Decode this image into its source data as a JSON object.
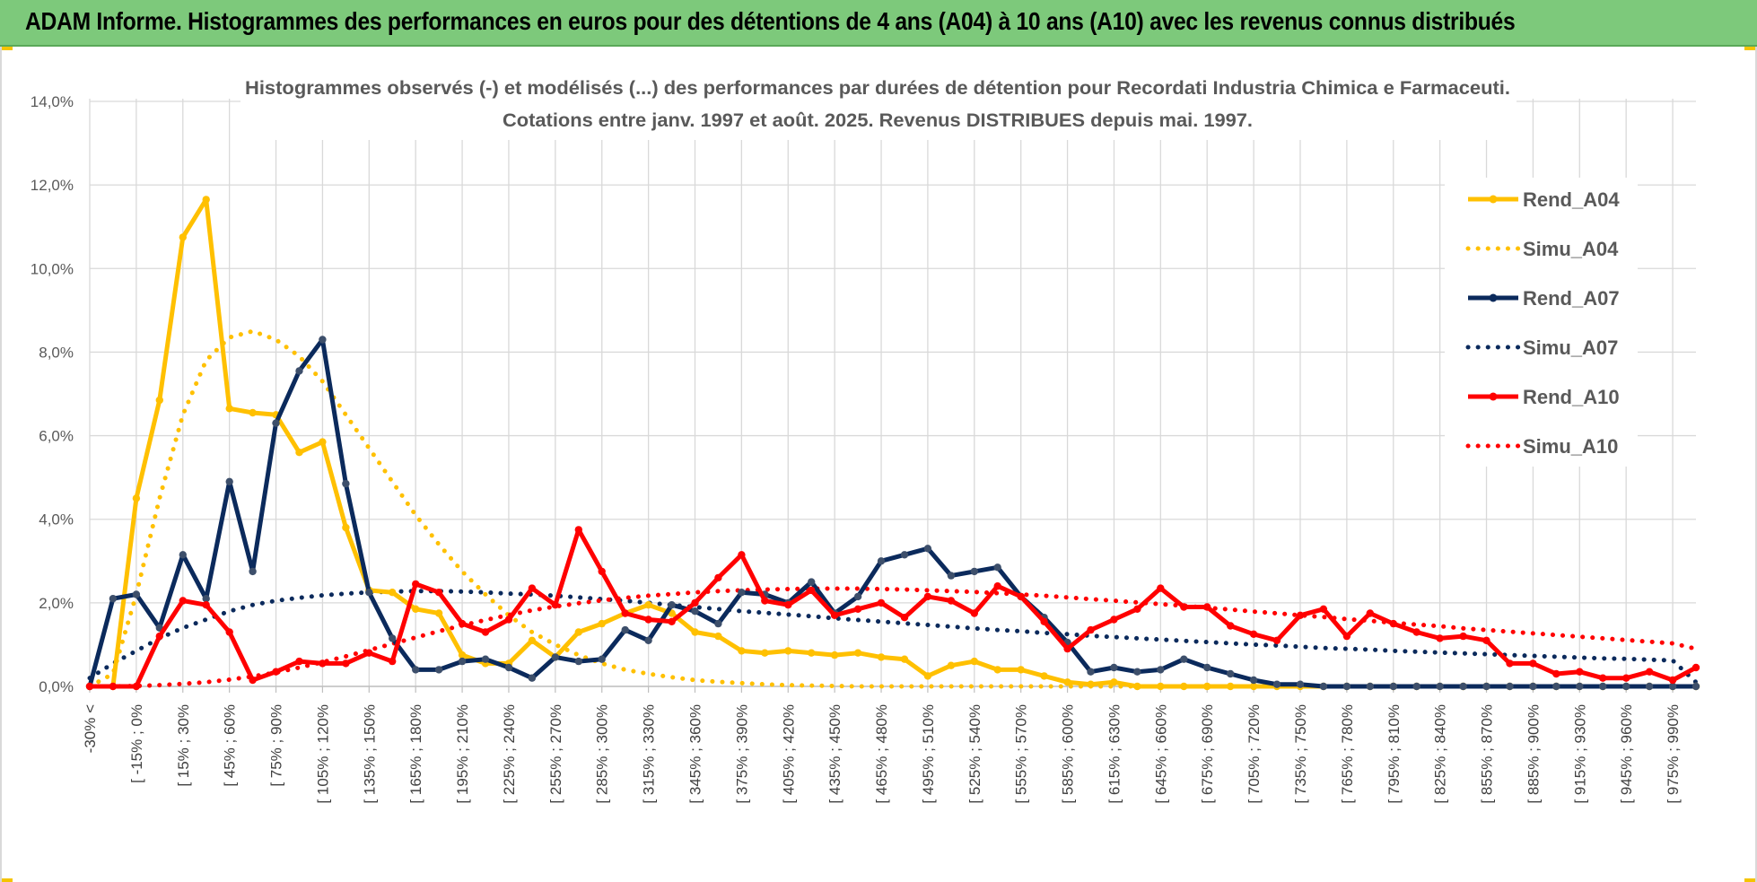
{
  "header": {
    "title": "ADAM Informe. Histogrammes des performances en euros pour des détentions de 4 ans (A04) à 10 ans (A10) avec les revenus connus distribués"
  },
  "colors": {
    "header_bg": "#7dc97b",
    "A04": "#ffc000",
    "A07": "#0b2a5c",
    "A10": "#ff0000",
    "grid": "#d9d9d9",
    "axis_text": "#595959"
  },
  "chart_data": {
    "type": "line",
    "title_line1": "Histogrammes observés (-) et modélisés (...) des performances par durées de détention pour Recordati Industria Chimica e Farmaceuti.",
    "title_line2": "Cotations entre janv. 1997 et août. 2025. Revenus DISTRIBUES depuis mai. 1997.",
    "y_ticks": [
      "0,0%",
      "2,0%",
      "4,0%",
      "6,0%",
      "8,0%",
      "10,0%",
      "12,0%",
      "14,0%"
    ],
    "ylim": [
      0,
      14
    ],
    "x_tick_labels": [
      "-30% <",
      "[ -15% ; 0%",
      "[ 15% ; 30%",
      "[ 45% ; 60%",
      "[ 75% ; 90%",
      "[ 105% ; 120%",
      "[ 135% ; 150%",
      "[ 165% ; 180%",
      "[ 195% ; 210%",
      "[ 225% ; 240%",
      "[ 255% ; 270%",
      "[ 285% ; 300%",
      "[ 315% ; 330%",
      "[ 345% ; 360%",
      "[ 375% ; 390%",
      "[ 405% ; 420%",
      "[ 435% ; 450%",
      "[ 465% ; 480%",
      "[ 495% ; 510%",
      "[ 525% ; 540%",
      "[ 555% ; 570%",
      "[ 585% ; 600%",
      "[ 615% ; 630%",
      "[ 645% ; 660%",
      "[ 675% ; 690%",
      "[ 705% ; 720%",
      "[ 735% ; 750%",
      "[ 765% ; 780%",
      "[ 795% ; 810%",
      "[ 825% ; 840%",
      "[ 855% ; 870%",
      "[ 885% ; 900%",
      "[ 915% ; 930%",
      "[ 945% ; 960%",
      "[ 975% ; 990%"
    ],
    "legend_position": "right",
    "series": [
      {
        "name": "Rend_A04",
        "style": "solid",
        "color": "#ffc000",
        "values": [
          0.0,
          0.0,
          4.5,
          6.85,
          10.75,
          11.65,
          6.65,
          6.55,
          6.5,
          5.6,
          5.85,
          3.8,
          2.3,
          2.25,
          1.85,
          1.75,
          0.75,
          0.55,
          0.55,
          1.1,
          0.7,
          1.3,
          1.5,
          1.75,
          1.95,
          1.75,
          1.3,
          1.2,
          0.85,
          0.8,
          0.85,
          0.8,
          0.75,
          0.8,
          0.7,
          0.65,
          0.25,
          0.5,
          0.6,
          0.4,
          0.4,
          0.25,
          0.1,
          0.05,
          0.1,
          0.0,
          0.0,
          0.0,
          0.0,
          0.0,
          0.0,
          0.0,
          0.0,
          0.0,
          0.0,
          0.0,
          0.0,
          0.0,
          0.0,
          0.0,
          0.0,
          0.0,
          0.0,
          0.0,
          0.0,
          0.0,
          0.0,
          0.0,
          0.0,
          0.0
        ]
      },
      {
        "name": "Simu_A04",
        "style": "dotted",
        "color": "#ffc000",
        "values": [
          0.0,
          0.3,
          2.2,
          4.5,
          6.5,
          7.8,
          8.35,
          8.5,
          8.3,
          7.9,
          7.3,
          6.5,
          5.7,
          4.9,
          4.1,
          3.4,
          2.75,
          2.2,
          1.7,
          1.3,
          1.0,
          0.75,
          0.55,
          0.4,
          0.3,
          0.22,
          0.15,
          0.11,
          0.08,
          0.05,
          0.03,
          0.02,
          0.01,
          0.0,
          0.0,
          0.0,
          0.0,
          0.0,
          0.0,
          0.0,
          0.0,
          0.0,
          0.0,
          0.0,
          0.0,
          0.0,
          0.0,
          0.0,
          0.0,
          0.0,
          0.0,
          0.0,
          0.0,
          0.0,
          0.0,
          0.0,
          0.0,
          0.0,
          0.0,
          0.0,
          0.0,
          0.0,
          0.0,
          0.0,
          0.0,
          0.0,
          0.0,
          0.0,
          0.0,
          0.0
        ]
      },
      {
        "name": "Rend_A07",
        "style": "solid",
        "color": "#0b2a5c",
        "values": [
          0.0,
          2.1,
          2.2,
          1.4,
          3.15,
          2.1,
          4.9,
          2.75,
          6.3,
          7.55,
          8.3,
          4.85,
          2.25,
          1.15,
          0.4,
          0.4,
          0.6,
          0.65,
          0.45,
          0.2,
          0.7,
          0.6,
          0.65,
          1.35,
          1.1,
          1.95,
          1.8,
          1.5,
          2.25,
          2.2,
          2.0,
          2.5,
          1.75,
          2.15,
          3.0,
          3.15,
          3.3,
          2.65,
          2.75,
          2.85,
          2.15,
          1.65,
          1.05,
          0.35,
          0.45,
          0.35,
          0.4,
          0.65,
          0.45,
          0.3,
          0.15,
          0.05,
          0.05,
          0.0,
          0.0,
          0.0,
          0.0,
          0.0,
          0.0,
          0.0,
          0.0,
          0.0,
          0.0,
          0.0,
          0.0,
          0.0,
          0.0,
          0.0,
          0.0,
          0.0
        ]
      },
      {
        "name": "Simu_A07",
        "style": "dotted",
        "color": "#0b2a5c",
        "values": [
          0.2,
          0.55,
          0.85,
          1.15,
          1.4,
          1.6,
          1.8,
          1.95,
          2.05,
          2.12,
          2.18,
          2.22,
          2.25,
          2.27,
          2.28,
          2.28,
          2.27,
          2.25,
          2.22,
          2.2,
          2.17,
          2.13,
          2.09,
          2.05,
          2.0,
          1.95,
          1.9,
          1.85,
          1.8,
          1.76,
          1.72,
          1.68,
          1.63,
          1.59,
          1.55,
          1.51,
          1.47,
          1.43,
          1.39,
          1.35,
          1.32,
          1.28,
          1.25,
          1.21,
          1.18,
          1.15,
          1.12,
          1.09,
          1.06,
          1.03,
          1.0,
          0.98,
          0.95,
          0.92,
          0.9,
          0.88,
          0.85,
          0.83,
          0.81,
          0.79,
          0.77,
          0.75,
          0.73,
          0.71,
          0.69,
          0.67,
          0.66,
          0.64,
          0.62,
          0.1
        ]
      },
      {
        "name": "Rend_A10",
        "style": "solid",
        "color": "#ff0000",
        "values": [
          0.0,
          0.0,
          0.0,
          1.2,
          2.05,
          1.95,
          1.3,
          0.15,
          0.35,
          0.6,
          0.55,
          0.55,
          0.8,
          0.6,
          2.45,
          2.25,
          1.5,
          1.3,
          1.6,
          2.35,
          1.95,
          3.75,
          2.75,
          1.75,
          1.6,
          1.55,
          2.0,
          2.6,
          3.15,
          2.05,
          1.95,
          2.3,
          1.7,
          1.85,
          2.0,
          1.65,
          2.15,
          2.05,
          1.75,
          2.4,
          2.15,
          1.55,
          0.9,
          1.35,
          1.6,
          1.85,
          2.35,
          1.9,
          1.9,
          1.45,
          1.25,
          1.1,
          1.7,
          1.85,
          1.2,
          1.75,
          1.5,
          1.3,
          1.15,
          1.2,
          1.1,
          0.55,
          0.55,
          0.3,
          0.35,
          0.2,
          0.2,
          0.35,
          0.15,
          0.45
        ]
      },
      {
        "name": "Simu_A10",
        "style": "dotted",
        "color": "#ff0000",
        "values": [
          0.0,
          0.0,
          0.01,
          0.03,
          0.06,
          0.1,
          0.16,
          0.24,
          0.33,
          0.45,
          0.58,
          0.72,
          0.87,
          1.02,
          1.17,
          1.32,
          1.46,
          1.59,
          1.71,
          1.82,
          1.91,
          1.99,
          2.06,
          2.12,
          2.17,
          2.21,
          2.25,
          2.28,
          2.3,
          2.32,
          2.33,
          2.34,
          2.34,
          2.34,
          2.33,
          2.32,
          2.3,
          2.28,
          2.26,
          2.23,
          2.2,
          2.17,
          2.13,
          2.09,
          2.05,
          2.01,
          1.97,
          1.93,
          1.88,
          1.84,
          1.79,
          1.75,
          1.7,
          1.66,
          1.61,
          1.57,
          1.52,
          1.48,
          1.44,
          1.39,
          1.35,
          1.31,
          1.27,
          1.23,
          1.19,
          1.15,
          1.11,
          1.07,
          1.03,
          0.9
        ]
      }
    ]
  }
}
